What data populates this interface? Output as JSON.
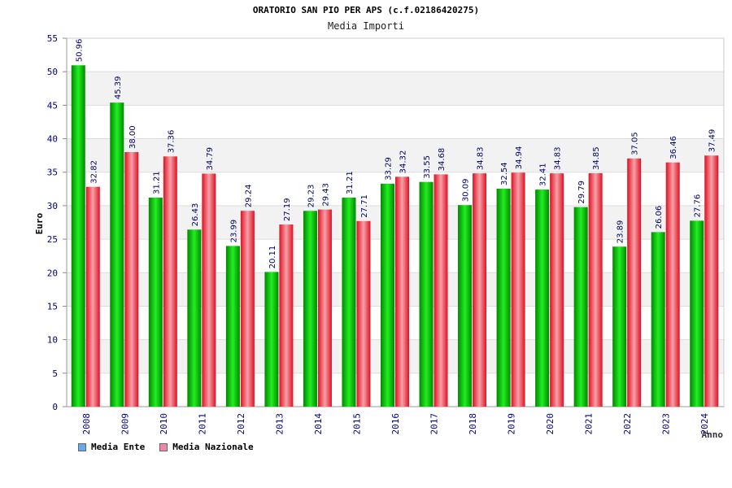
{
  "chart_data": {
    "type": "bar",
    "title": "ORATORIO SAN PIO PER APS (c.f.02186420275)",
    "subtitle": "Media Importi",
    "xlabel": "Anno",
    "ylabel": "Euro",
    "ylim": [
      0,
      55
    ],
    "yticks": [
      0,
      5,
      10,
      15,
      20,
      25,
      30,
      35,
      40,
      45,
      50,
      55
    ],
    "grid": true,
    "legend_position": "bottom-left",
    "categories": [
      "2008",
      "2009",
      "2010",
      "2011",
      "2012",
      "2013",
      "2014",
      "2015",
      "2016",
      "2017",
      "2018",
      "2019",
      "2020",
      "2021",
      "2022",
      "2023",
      "2024"
    ],
    "series": [
      {
        "name": "Media Ente",
        "color": "#11bb11",
        "values": [
          50.96,
          45.39,
          31.21,
          26.43,
          23.99,
          20.11,
          29.23,
          31.21,
          33.29,
          33.55,
          30.09,
          32.54,
          32.41,
          29.79,
          23.89,
          26.06,
          27.76
        ],
        "labels": [
          "50.96",
          "45.39",
          "31.21",
          "26.43",
          "23.99",
          "20.11",
          "29.23",
          "31.21",
          "33.29",
          "33.55",
          "30.09",
          "32.54",
          "32.41",
          "29.79",
          "23.89",
          "26.06",
          "27.76"
        ]
      },
      {
        "name": "Media Nazionale",
        "color": "#ee3344",
        "values": [
          32.82,
          38.0,
          37.36,
          34.79,
          29.24,
          27.19,
          29.43,
          27.71,
          34.32,
          34.68,
          34.83,
          34.94,
          34.83,
          34.85,
          37.05,
          36.46,
          37.49
        ],
        "labels": [
          "32.82",
          "38.00",
          "37.36",
          "34.79",
          "29.24",
          "27.19",
          "29.43",
          "27.71",
          "34.32",
          "34.68",
          "34.83",
          "34.94",
          "34.83",
          "34.85",
          "37.05",
          "36.46",
          "37.49"
        ]
      }
    ],
    "legend": [
      {
        "label": "Media Ente",
        "color": "#66aaee"
      },
      {
        "label": "Media Nazionale",
        "color": "#ee88aa"
      }
    ]
  }
}
